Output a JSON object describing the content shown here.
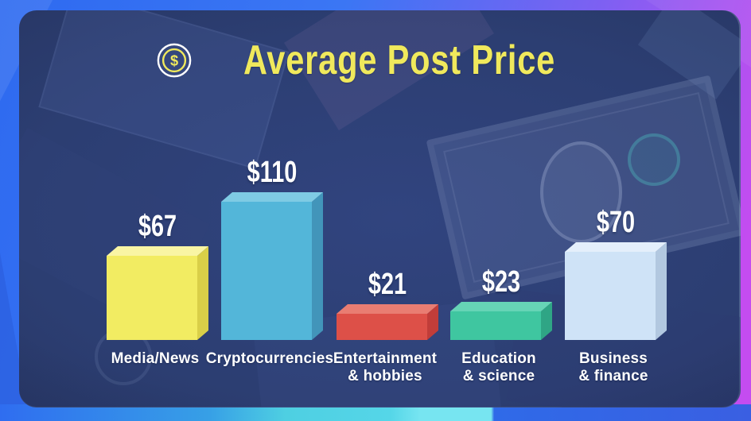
{
  "colors": {
    "accent_yellow": "#f0e95c",
    "frame_blue": "#2e6af0",
    "frame_magenta": "#c44cf0",
    "frame_cyan": "#77e5f1",
    "panel_navy": "#2c3e72",
    "label_white": "#ffffff"
  },
  "title": {
    "icon": "dollar-coin-icon"
  },
  "chart_data": {
    "type": "bar",
    "title": "Average Post Price",
    "categories": [
      "Media/News",
      "Cryptocurrencies",
      "Entertainment\n& hobbies",
      "Education\n& science",
      "Business\n& finance"
    ],
    "values": [
      67,
      110,
      21,
      23,
      70
    ],
    "value_labels": [
      "$67",
      "$110",
      "$21",
      "$23",
      "$70"
    ],
    "unit": "$",
    "ylim": [
      0,
      110
    ],
    "xlabel": "",
    "ylabel": "",
    "grid": false,
    "legend": false,
    "style": "3d-extruded-bars",
    "bar_colors": [
      {
        "name": "yellow",
        "front": "#f2ec62",
        "top": "#f9f5a4",
        "side": "#d9cf48"
      },
      {
        "name": "cyan",
        "front": "#53b6d9",
        "top": "#7fcbe4",
        "side": "#4295ba"
      },
      {
        "name": "red",
        "front": "#dd5048",
        "top": "#e97d72",
        "side": "#c13d39"
      },
      {
        "name": "green",
        "front": "#3fc6a0",
        "top": "#66d4b6",
        "side": "#2fa585"
      },
      {
        "name": "light-blue",
        "front": "#cfe3f7",
        "top": "#e4effb",
        "side": "#b2c8e0"
      }
    ]
  }
}
